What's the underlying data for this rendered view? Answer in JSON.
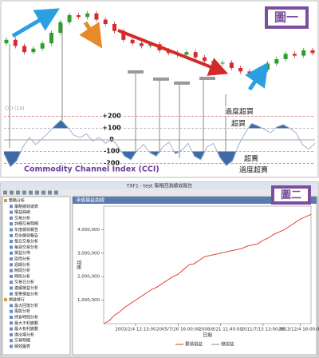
{
  "chart_data": [
    {
      "type": "candlestick",
      "badge": "圖一",
      "open": [
        58,
        62,
        55,
        48,
        52,
        58,
        70,
        82,
        90,
        88,
        92,
        85,
        80,
        72,
        62,
        58,
        55,
        57,
        50,
        47,
        45,
        48,
        42,
        38,
        35,
        36,
        30,
        26,
        24,
        28,
        35,
        40,
        46,
        44,
        50
      ],
      "close": [
        62,
        55,
        48,
        52,
        58,
        70,
        82,
        90,
        88,
        92,
        85,
        80,
        72,
        62,
        58,
        55,
        57,
        50,
        47,
        45,
        48,
        42,
        38,
        35,
        36,
        30,
        26,
        24,
        28,
        35,
        40,
        46,
        44,
        50,
        47
      ],
      "up_color": "#2e9e2e",
      "down_color": "#d42a2a",
      "ylim": [
        0,
        100
      ]
    },
    {
      "type": "line",
      "title": "Commodity Channel Index (CCI)",
      "indicator": "CCI (14)",
      "annotations": [
        "過度超買",
        "超買",
        "超賣",
        "過度超賣"
      ],
      "values": [
        -120,
        -230,
        -180,
        -60,
        20,
        -40,
        10,
        60,
        120,
        170,
        110,
        40,
        20,
        50,
        -10,
        20,
        -30,
        10,
        -60,
        -140,
        -170,
        -90,
        -40,
        -110,
        -140,
        -60,
        -20,
        -120,
        -90,
        -30,
        -140,
        -170,
        -60,
        -30,
        -150,
        -220,
        -180,
        -40,
        60,
        140,
        120,
        90,
        60,
        110,
        130,
        100,
        60,
        -40,
        -80,
        -30
      ],
      "color": "#9fb3c8",
      "fill_color": "#3f6aa8",
      "ylim": [
        -300,
        300
      ],
      "yticks": [
        {
          "value": 200,
          "label": "+200"
        },
        {
          "value": 100,
          "label": "+100"
        },
        0,
        -100,
        -200
      ]
    },
    {
      "type": "line",
      "window_title": "TXF1 - test 策略回測績效報告",
      "panel_title": "淨值損益曲線",
      "badge": "圖二",
      "xlabel": "日期",
      "ylabel": "損益",
      "tree": [
        "策略分析",
        "策略績效總表",
        "權益曲線",
        "交易分析",
        "詳細交易明細",
        "年度績效報告",
        "月份績效報告",
        "每日交易分析",
        "每週交易分析",
        "損益分佈",
        "區間分析",
        "週期分析",
        "時間分析",
        "時段分析",
        "交易日分析",
        "連續損益分析",
        "單筆損益分析",
        "損益排行",
        "最大回落分析",
        "風險分析",
        "持倉時間分析",
        "最大不利變動",
        "最大有利變動",
        "進出場分析",
        "交易明細",
        "績效圖表"
      ],
      "legend": [
        "累積損益",
        "總損益"
      ],
      "x": [
        0,
        1,
        2,
        3,
        4,
        5,
        6,
        7,
        8,
        9,
        10,
        11,
        12,
        13,
        14,
        15,
        16,
        17,
        18,
        19,
        20,
        21,
        22,
        23,
        24,
        25,
        26,
        27,
        28,
        29,
        30,
        31,
        32,
        33,
        34,
        35,
        36,
        37,
        38,
        39
      ],
      "values": [
        0,
        120000,
        350000,
        500000,
        700000,
        850000,
        1000000,
        1150000,
        1300000,
        1450000,
        1550000,
        1700000,
        1850000,
        2000000,
        2100000,
        2300000,
        2500000,
        2550000,
        2700000,
        2850000,
        2900000,
        2950000,
        3000000,
        3050000,
        3100000,
        3150000,
        3200000,
        3300000,
        3350000,
        3400000,
        3550000,
        3650000,
        3800000,
        3900000,
        4000000,
        4150000,
        4300000,
        4450000,
        4550000,
        4650000
      ],
      "color": "#e03020",
      "xlim": [
        0,
        39
      ],
      "ylim": [
        0,
        5000000
      ],
      "xticks": [
        {
          "value": 6,
          "label": "2003/2/4 12:15:00"
        },
        {
          "value": 14,
          "label": "2005/7/26 16:00:00"
        },
        {
          "value": 22,
          "label": "2008/8/21 11:40:00"
        },
        {
          "value": 30,
          "label": "2011/7/15 13:00:00"
        },
        {
          "value": 37,
          "label": "2013/12/4 16:00:00"
        }
      ],
      "yticks": [
        {
          "value": 1000000,
          "label": "1,000,000"
        },
        {
          "value": 2000000,
          "label": "2,000,000"
        },
        {
          "value": 3000000,
          "label": "3,000,000"
        },
        {
          "value": 4000000,
          "label": "4,000,000"
        }
      ]
    }
  ]
}
